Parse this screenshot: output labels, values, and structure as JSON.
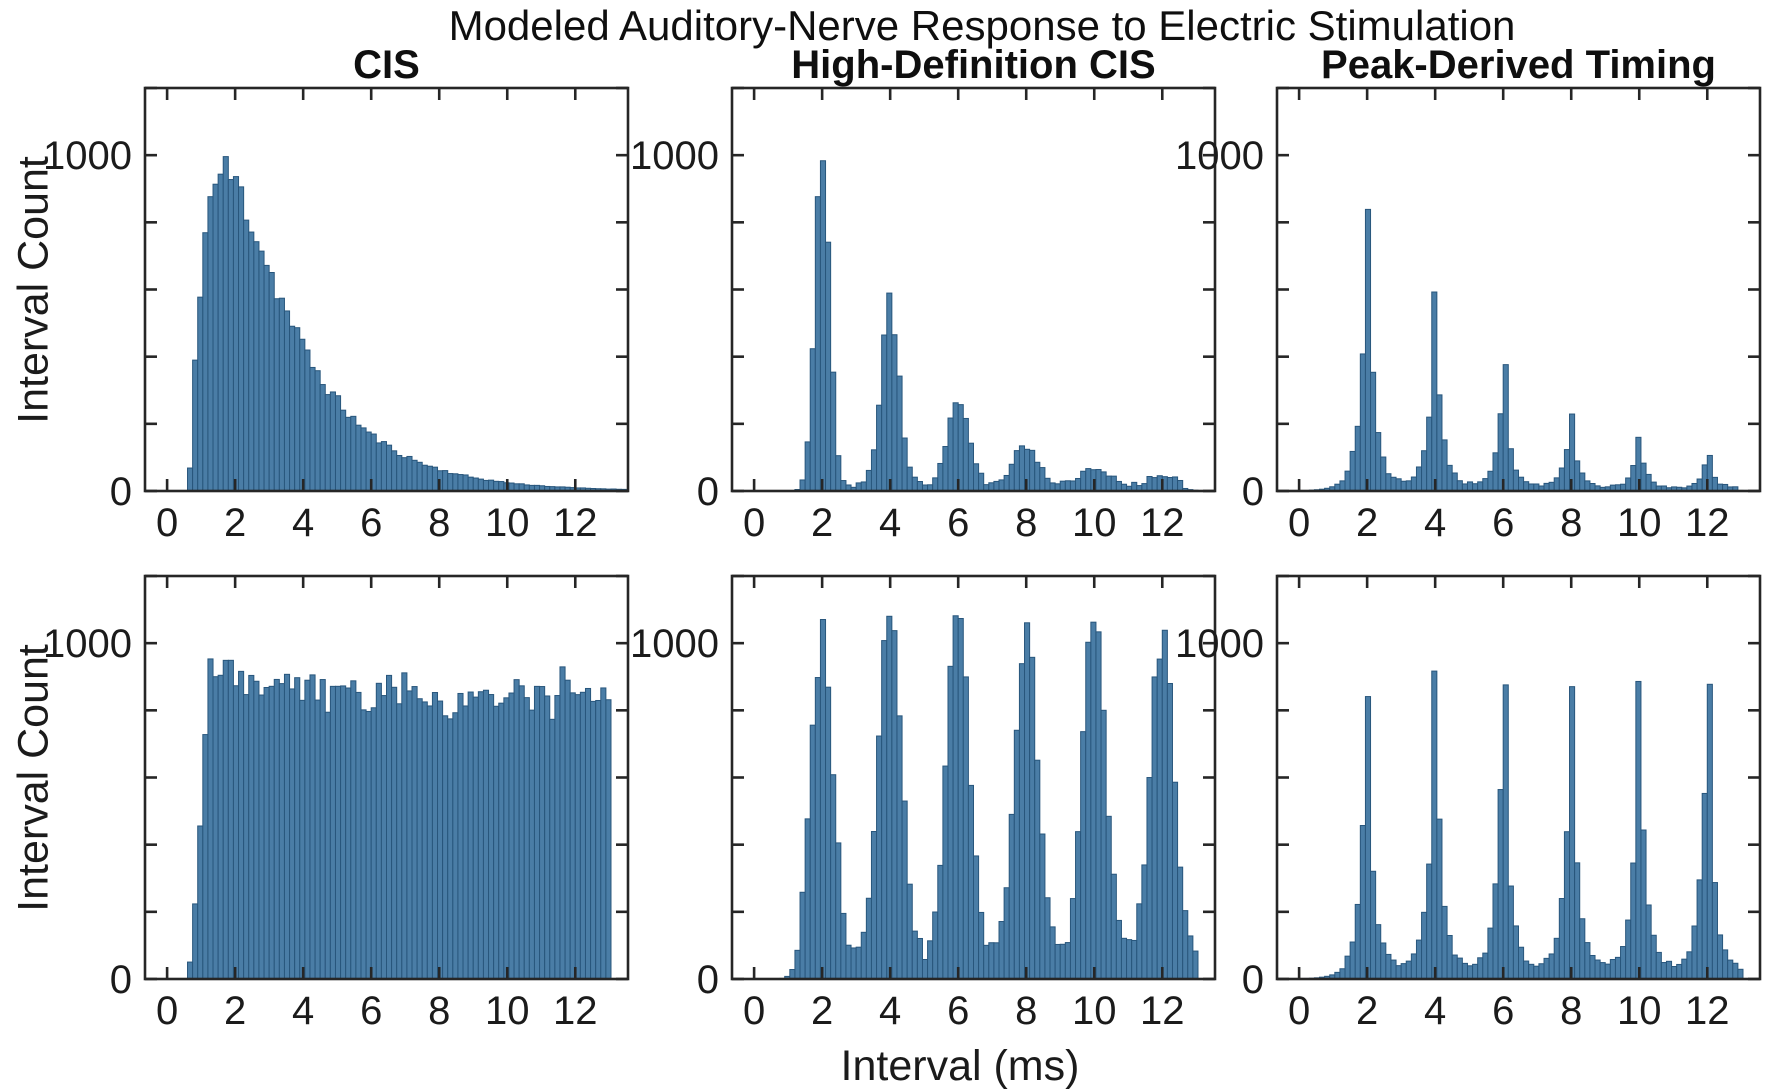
{
  "figure": {
    "title": "Modeled Auditory-Nerve Response to Electric Stimulation",
    "columns": [
      "CIS",
      "High-Definition CIS",
      "Peak-Derived Timing"
    ],
    "ylabel": "Interval Count",
    "xlabel": "Interval (ms)"
  },
  "style": {
    "background": "#ffffff",
    "bar_fill": "#4a7da6",
    "bar_edge": "#28567c",
    "axis_color": "#262626",
    "text_color": "#1b1b1b"
  },
  "chart_data": [
    {
      "id": "cis-top",
      "row": 0,
      "col": 0,
      "type": "bar",
      "subtype": "histogram",
      "column_title": "CIS",
      "ylabel": "Interval Count",
      "x_unit": "ms",
      "bin_width_ms": 0.15,
      "xlim": [
        -0.65,
        13.55
      ],
      "ylim": [
        0,
        1200
      ],
      "xticks": [
        0,
        2,
        4,
        6,
        8,
        10,
        12
      ],
      "yticks_labeled": [
        0,
        1000
      ],
      "ytick_minor_step": 200,
      "distribution": {
        "kind": "refractory_exponential",
        "onset_ms": 0.65,
        "rise_tau_ms": 0.8,
        "decay_tau_ms": 2.1,
        "peak_interval_ms": 1.8,
        "peak_count": 950,
        "noise_frac": 0.07
      }
    },
    {
      "id": "hdcis-top",
      "row": 0,
      "col": 1,
      "type": "bar",
      "subtype": "histogram",
      "column_title": "High-Definition CIS",
      "ylabel": "Interval Count",
      "x_unit": "ms",
      "bin_width_ms": 0.15,
      "xlim": [
        -0.65,
        13.55
      ],
      "ylim": [
        0,
        1200
      ],
      "xticks": [
        0,
        2,
        4,
        6,
        8,
        10,
        12
      ],
      "yticks_labeled": [
        0,
        1000
      ],
      "ytick_minor_step": 200,
      "distribution": {
        "kind": "gaussian_peaks",
        "peaks": [
          {
            "center_ms": 2,
            "count": 950,
            "sigma_ms": 0.22
          },
          {
            "center_ms": 4,
            "count": 530,
            "sigma_ms": 0.27
          },
          {
            "center_ms": 6,
            "count": 245,
            "sigma_ms": 0.32
          },
          {
            "center_ms": 8,
            "count": 115,
            "sigma_ms": 0.37
          },
          {
            "center_ms": 10,
            "count": 48,
            "sigma_ms": 0.42
          },
          {
            "center_ms": 12,
            "count": 22,
            "sigma_ms": 0.45
          }
        ],
        "floor_count": 18,
        "floor_window_ms": [
          1.6,
          12.6
        ],
        "noise_frac": 0.07
      }
    },
    {
      "id": "pdt-top",
      "row": 0,
      "col": 2,
      "type": "bar",
      "subtype": "histogram",
      "column_title": "Peak-Derived Timing",
      "ylabel": "Interval Count",
      "x_unit": "ms",
      "bin_width_ms": 0.15,
      "xlim": [
        -0.65,
        13.55
      ],
      "ylim": [
        0,
        1200
      ],
      "xticks": [
        0,
        2,
        4,
        6,
        8,
        10,
        12
      ],
      "yticks_labeled": [
        0,
        1000
      ],
      "ytick_minor_step": 200,
      "distribution": {
        "kind": "sharp_peaks",
        "peaks": [
          {
            "center_ms": 2,
            "count": 845
          },
          {
            "center_ms": 4,
            "count": 590
          },
          {
            "center_ms": 6,
            "count": 375
          },
          {
            "center_ms": 8,
            "count": 230
          },
          {
            "center_ms": 10,
            "count": 160
          },
          {
            "center_ms": 12,
            "count": 105
          }
        ],
        "core_width_ms": 0.16,
        "tail_width_ms": 0.38,
        "floor_count": 8,
        "floor_window_ms": [
          1.4,
          12.9
        ],
        "noise_frac": 0.08
      }
    },
    {
      "id": "cis-bottom",
      "row": 1,
      "col": 0,
      "type": "bar",
      "subtype": "histogram",
      "column_title": "CIS",
      "ylabel": "Interval Count",
      "x_unit": "ms",
      "bin_width_ms": 0.15,
      "xlim": [
        -0.65,
        13.55
      ],
      "ylim": [
        0,
        1200
      ],
      "xticks": [
        0,
        2,
        4,
        6,
        8,
        10,
        12
      ],
      "yticks_labeled": [
        0,
        1000
      ],
      "ytick_minor_step": 200,
      "distribution": {
        "kind": "uniform",
        "onset_ms": 0.65,
        "ramp_end_ms": 1.25,
        "mean_count": 845,
        "hump_count": 65,
        "hump_center_ms": 1.9,
        "hump_sigma_ms": 1.1,
        "noise_sd": 48,
        "max_count": 1010,
        "cutoff_ms": 13.05
      }
    },
    {
      "id": "hdcis-bottom",
      "row": 1,
      "col": 1,
      "type": "bar",
      "subtype": "histogram",
      "column_title": "High-Definition CIS",
      "ylabel": "Interval Count",
      "x_unit": "ms",
      "bin_width_ms": 0.15,
      "xlim": [
        -0.65,
        13.55
      ],
      "ylim": [
        0,
        1200
      ],
      "xticks": [
        0,
        2,
        4,
        6,
        8,
        10,
        12
      ],
      "yticks_labeled": [
        0,
        1000
      ],
      "ytick_minor_step": 200,
      "distribution": {
        "kind": "gaussian_peaks",
        "peaks": [
          {
            "center_ms": 2,
            "count": 950,
            "sigma_ms": 0.33
          },
          {
            "center_ms": 4,
            "count": 1025,
            "sigma_ms": 0.33
          },
          {
            "center_ms": 6,
            "count": 1085,
            "sigma_ms": 0.33
          },
          {
            "center_ms": 8,
            "count": 980,
            "sigma_ms": 0.34
          },
          {
            "center_ms": 10,
            "count": 1025,
            "sigma_ms": 0.34
          },
          {
            "center_ms": 12,
            "count": 965,
            "sigma_ms": 0.34
          }
        ],
        "floor_count": 60,
        "floor_window_ms": [
          1.3,
          13.05
        ],
        "cutoff_ms": 13.05,
        "noise_frac": 0.06
      }
    },
    {
      "id": "pdt-bottom",
      "row": 1,
      "col": 2,
      "type": "bar",
      "subtype": "histogram",
      "column_title": "Peak-Derived Timing",
      "ylabel": "Interval Count",
      "x_unit": "ms",
      "bin_width_ms": 0.15,
      "xlim": [
        -0.65,
        13.55
      ],
      "ylim": [
        0,
        1200
      ],
      "xticks": [
        0,
        2,
        4,
        6,
        8,
        10,
        12
      ],
      "yticks_labeled": [
        0,
        1000
      ],
      "ytick_minor_step": 200,
      "distribution": {
        "kind": "sharp_peaks",
        "peaks": [
          {
            "center_ms": 2,
            "count": 845
          },
          {
            "center_ms": 4,
            "count": 913
          },
          {
            "center_ms": 6,
            "count": 880
          },
          {
            "center_ms": 8,
            "count": 870
          },
          {
            "center_ms": 10,
            "count": 885
          },
          {
            "center_ms": 12,
            "count": 875
          }
        ],
        "core_width_ms": 0.16,
        "tail_width_ms": 0.38,
        "floor_count": 16,
        "floor_window_ms": [
          1.3,
          13.1
        ],
        "cutoff_ms": 13.1,
        "noise_frac": 0.07
      }
    }
  ]
}
